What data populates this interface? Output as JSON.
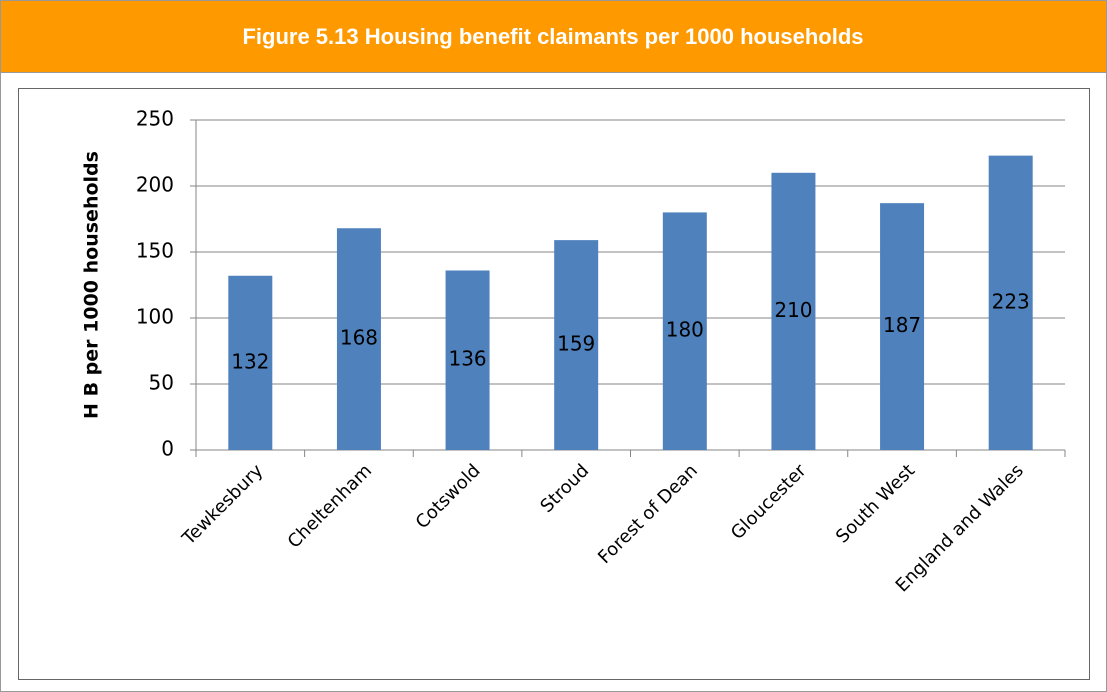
{
  "chart_data": {
    "type": "bar",
    "title": "Figure 5.13 Housing benefit claimants per 1000 households",
    "ylabel": "H B per 1000 households",
    "categories": [
      "Tewkesbury",
      "Cheltenham",
      "Cotswold",
      "Stroud",
      "Forest of Dean",
      "Gloucester",
      "South West",
      "England and Wales"
    ],
    "values": [
      132,
      168,
      136,
      159,
      180,
      210,
      187,
      223
    ],
    "color": "#4f81bd",
    "ylim": [
      0,
      250
    ],
    "yticks": [
      0,
      50,
      100,
      150,
      200,
      250
    ],
    "grid": true
  }
}
